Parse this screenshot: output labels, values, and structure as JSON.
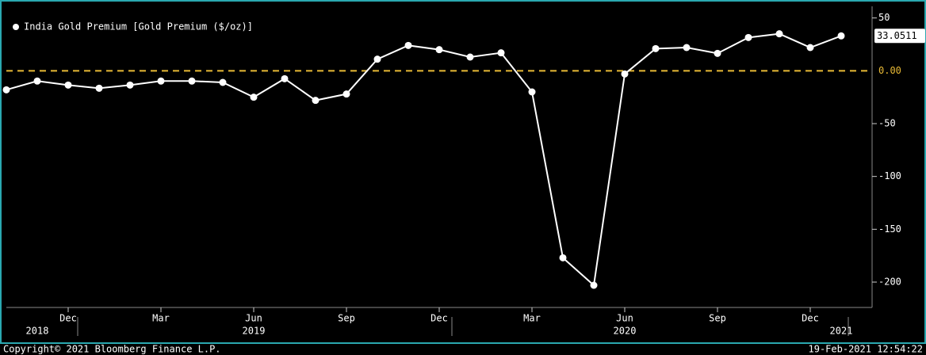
{
  "chart_data": {
    "type": "line",
    "series": [
      {
        "name": "India Gold Premium [Gold Premium ($/oz)]",
        "color": "#ffffff",
        "x": [
          "2018-10",
          "2018-11",
          "2018-12",
          "2019-01",
          "2019-02",
          "2019-03",
          "2019-04",
          "2019-05",
          "2019-06",
          "2019-07",
          "2019-08",
          "2019-09",
          "2019-10",
          "2019-11",
          "2019-12",
          "2020-01",
          "2020-02",
          "2020-03",
          "2020-04",
          "2020-05",
          "2020-06",
          "2020-07",
          "2020-08",
          "2020-09",
          "2020-10",
          "2020-11",
          "2020-12",
          "2021-01"
        ],
        "values": [
          -18,
          -9.7,
          -13.5,
          -16.5,
          -13.5,
          -9.7,
          -9.7,
          -11,
          -25,
          -7.5,
          -28,
          -22,
          11,
          24,
          20,
          13,
          17,
          -20,
          -177,
          -203,
          -3,
          21,
          22,
          16.5,
          31.5,
          35,
          22,
          33.0511
        ]
      }
    ],
    "xlim": [
      "2018-10",
      "2021-02"
    ],
    "xticks": [
      {
        "value": "2018-12",
        "label": "Dec"
      },
      {
        "value": "2019-03",
        "label": "Mar"
      },
      {
        "value": "2019-06",
        "label": "Jun"
      },
      {
        "value": "2019-09",
        "label": "Sep"
      },
      {
        "value": "2019-12",
        "label": "Dec"
      },
      {
        "value": "2020-03",
        "label": "Mar"
      },
      {
        "value": "2020-06",
        "label": "Jun"
      },
      {
        "value": "2020-09",
        "label": "Sep"
      },
      {
        "value": "2020-12",
        "label": "Dec"
      }
    ],
    "year_labels": [
      {
        "value": "2018-11",
        "label": "2018"
      },
      {
        "value": "2019-06",
        "label": "2019"
      },
      {
        "value": "2020-06",
        "label": "2020"
      },
      {
        "value": "2021-01",
        "label": "2021"
      }
    ],
    "ylim": [
      -224,
      61
    ],
    "yticks": [
      -200,
      -150,
      -100,
      -50,
      50
    ],
    "reference_line": {
      "value": 0,
      "label": "0.00",
      "color": "#e8b935"
    },
    "legend": "top-left",
    "footer_left": "Copyright© 2021 Bloomberg Finance L.P.",
    "footer_right": "19-Feb-2021 12:54:22"
  }
}
